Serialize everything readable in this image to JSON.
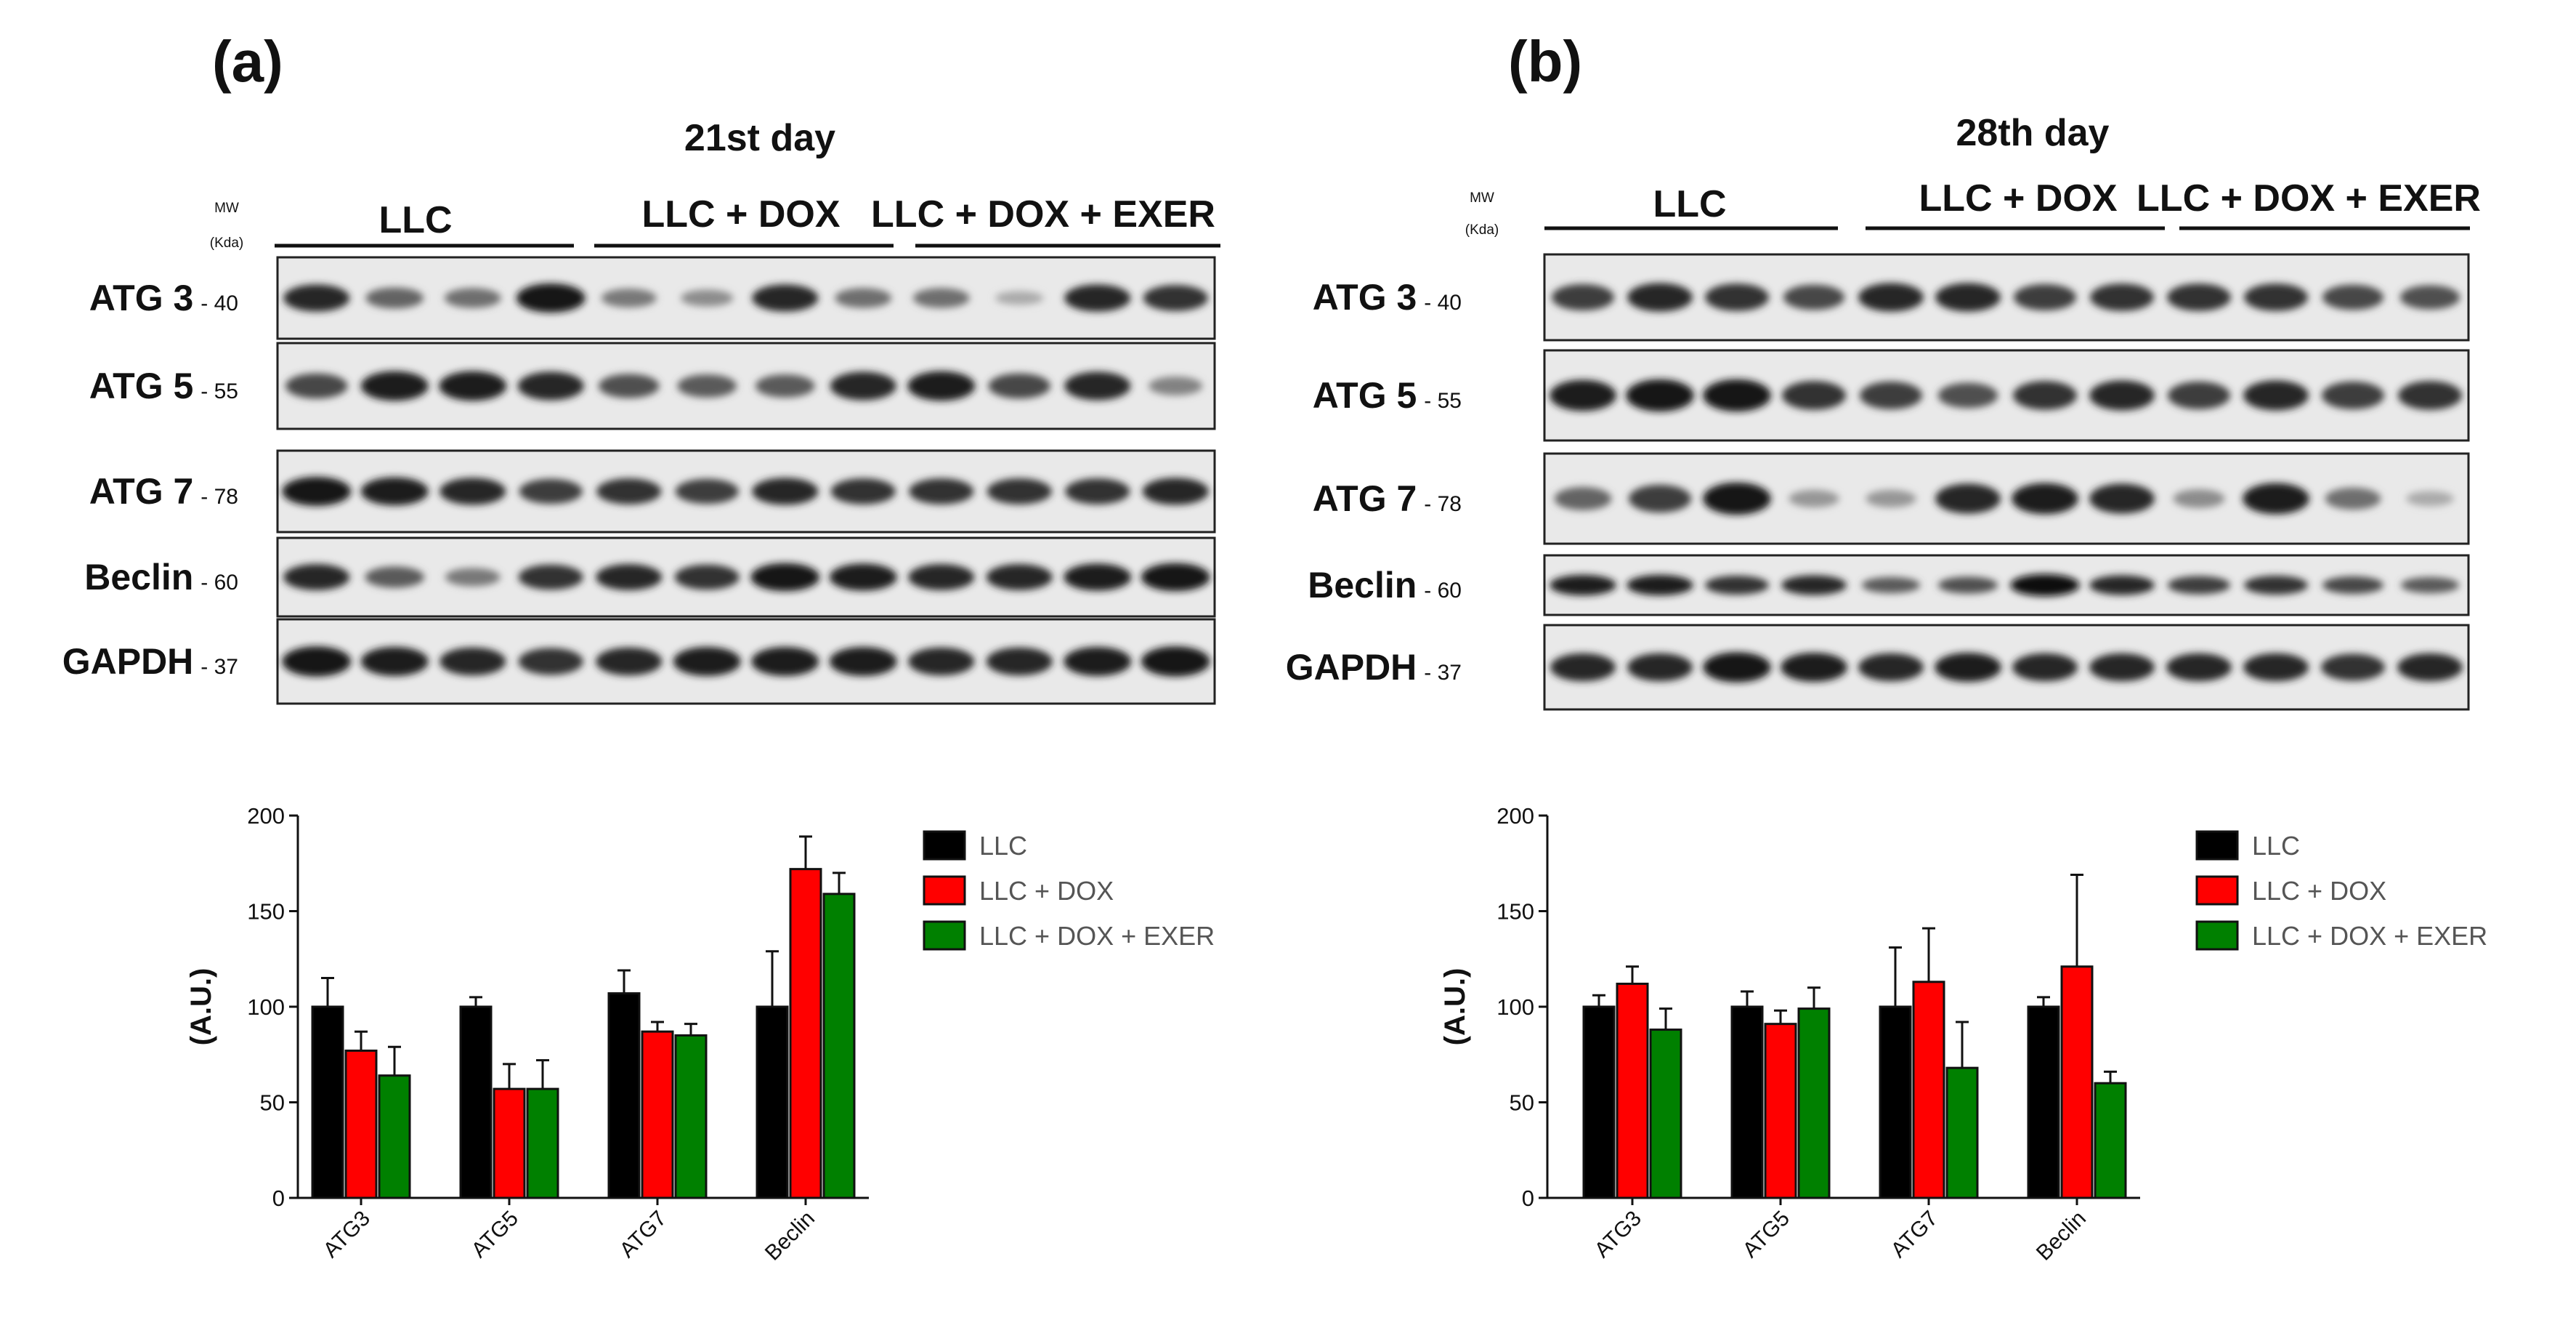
{
  "panels": [
    {
      "id": "a",
      "letter": "(a)",
      "day_title": "21st day",
      "mw_label": "MW",
      "mw_unit": "(Kda)",
      "groups": [
        "LLC",
        "LLC + DOX",
        "LLC + DOX + EXER"
      ],
      "blots": [
        {
          "name": "ATG 3",
          "mw": "- 40",
          "intensity": [
            0.85,
            0.55,
            0.5,
            0.95,
            0.45,
            0.35,
            0.85,
            0.5,
            0.5,
            0.2,
            0.85,
            0.8
          ]
        },
        {
          "name": "ATG 5",
          "mw": "- 55",
          "intensity": [
            0.7,
            0.9,
            0.9,
            0.85,
            0.65,
            0.6,
            0.6,
            0.85,
            0.9,
            0.7,
            0.85,
            0.4
          ]
        },
        {
          "name": "ATG 7",
          "mw": "- 78",
          "intensity": [
            0.95,
            0.9,
            0.85,
            0.75,
            0.8,
            0.75,
            0.85,
            0.8,
            0.8,
            0.8,
            0.8,
            0.85
          ]
        },
        {
          "name": "Beclin",
          "mw": "- 60",
          "intensity": [
            0.85,
            0.6,
            0.45,
            0.8,
            0.85,
            0.8,
            0.95,
            0.9,
            0.85,
            0.85,
            0.9,
            0.95
          ]
        },
        {
          "name": "GAPDH",
          "mw": "- 37",
          "intensity": [
            0.95,
            0.9,
            0.85,
            0.8,
            0.85,
            0.9,
            0.9,
            0.9,
            0.85,
            0.85,
            0.9,
            0.95
          ]
        }
      ],
      "chart_data": {
        "type": "bar",
        "categories": [
          "ATG3",
          "ATG5",
          "ATG7",
          "Beclin"
        ],
        "ylabel": "(A.U.)",
        "ylim": [
          0,
          200
        ],
        "yticks": [
          "0",
          "50",
          "100",
          "150",
          "200"
        ],
        "series": [
          {
            "name": "LLC",
            "color": "#000000",
            "values": [
              100,
              100,
              107,
              100
            ],
            "errors": [
              15,
              5,
              12,
              29
            ]
          },
          {
            "name": "LLC + DOX",
            "color": "#ff0000",
            "values": [
              77,
              57,
              87,
              172
            ],
            "errors": [
              10,
              13,
              5,
              17
            ]
          },
          {
            "name": "LLC + DOX + EXER",
            "color": "#008000",
            "values": [
              64,
              57,
              85,
              159
            ],
            "errors": [
              15,
              15,
              6,
              11
            ]
          }
        ]
      }
    },
    {
      "id": "b",
      "letter": "(b)",
      "day_title": "28th day",
      "mw_label": "MW",
      "mw_unit": "(Kda)",
      "groups": [
        "LLC",
        "LLC + DOX",
        "LLC + DOX + EXER"
      ],
      "blots": [
        {
          "name": "ATG 3",
          "mw": "- 40",
          "intensity": [
            0.75,
            0.85,
            0.8,
            0.7,
            0.85,
            0.85,
            0.75,
            0.8,
            0.8,
            0.8,
            0.7,
            0.65
          ]
        },
        {
          "name": "ATG 5",
          "mw": "- 55",
          "intensity": [
            0.9,
            0.95,
            0.95,
            0.8,
            0.75,
            0.65,
            0.8,
            0.85,
            0.75,
            0.85,
            0.75,
            0.8
          ]
        },
        {
          "name": "ATG 7",
          "mw": "- 78",
          "intensity": [
            0.55,
            0.75,
            0.95,
            0.3,
            0.3,
            0.85,
            0.9,
            0.85,
            0.35,
            0.9,
            0.5,
            0.2
          ]
        },
        {
          "name": "Beclin",
          "mw": "- 60",
          "intensity": [
            0.9,
            0.9,
            0.8,
            0.85,
            0.6,
            0.65,
            1.0,
            0.85,
            0.75,
            0.8,
            0.7,
            0.6
          ]
        },
        {
          "name": "GAPDH",
          "mw": "- 37",
          "intensity": [
            0.85,
            0.85,
            0.95,
            0.9,
            0.85,
            0.9,
            0.85,
            0.85,
            0.85,
            0.85,
            0.8,
            0.85
          ]
        }
      ],
      "chart_data": {
        "type": "bar",
        "categories": [
          "ATG3",
          "ATG5",
          "ATG7",
          "Beclin"
        ],
        "ylabel": "(A.U.)",
        "ylim": [
          0,
          200
        ],
        "yticks": [
          "0",
          "50",
          "100",
          "150",
          "200"
        ],
        "series": [
          {
            "name": "LLC",
            "color": "#000000",
            "values": [
              100,
              100,
              100,
              100
            ],
            "errors": [
              6,
              8,
              31,
              5
            ]
          },
          {
            "name": "LLC + DOX",
            "color": "#ff0000",
            "values": [
              112,
              91,
              113,
              121
            ],
            "errors": [
              9,
              7,
              28,
              48
            ]
          },
          {
            "name": "LLC + DOX + EXER",
            "color": "#008000",
            "values": [
              88,
              99,
              68,
              60
            ],
            "errors": [
              11,
              11,
              24,
              6
            ]
          }
        ]
      }
    }
  ]
}
